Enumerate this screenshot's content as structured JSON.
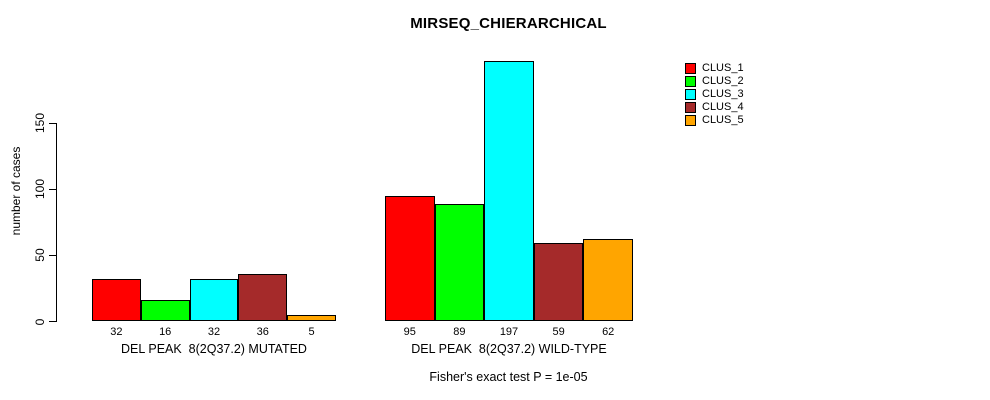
{
  "chart_data": {
    "type": "bar",
    "title": "MIRSEQ_CHIERARCHICAL",
    "ylabel": "number of cases",
    "xlabel": "",
    "annotation": "Fisher's exact test P = 1e-05",
    "yticks": [
      0,
      50,
      100,
      150
    ],
    "ylim": [
      0,
      200
    ],
    "grid": false,
    "legend_position": "right",
    "categories": [
      "DEL PEAK  8(2Q37.2) MUTATED",
      "DEL PEAK  8(2Q37.2) WILD-TYPE"
    ],
    "series": [
      {
        "name": "CLUS_1",
        "color": "#FF0000",
        "values": [
          32,
          95
        ]
      },
      {
        "name": "CLUS_2",
        "color": "#00FF00",
        "values": [
          16,
          89
        ]
      },
      {
        "name": "CLUS_3",
        "color": "#00FFFF",
        "values": [
          32,
          197
        ]
      },
      {
        "name": "CLUS_4",
        "color": "#A52A2A",
        "values": [
          36,
          59
        ]
      },
      {
        "name": "CLUS_5",
        "color": "#FFA500",
        "values": [
          5,
          62
        ]
      }
    ],
    "bar_value_labels_shown": true,
    "colors": {
      "background": "#FFFFFF",
      "axis": "#000000",
      "text": "#000000"
    }
  }
}
